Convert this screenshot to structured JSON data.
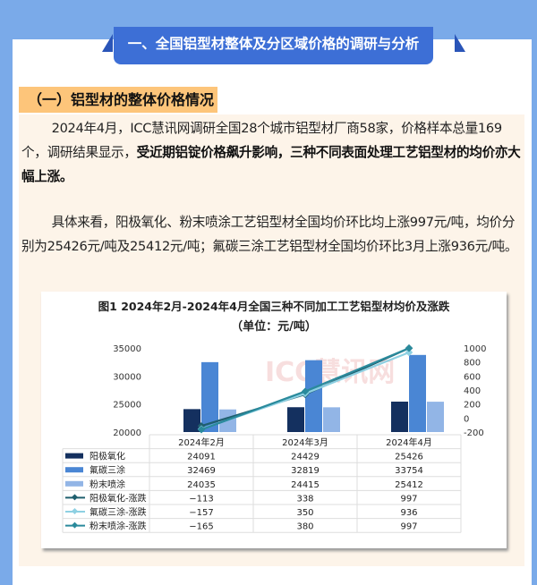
{
  "header": {
    "section_title": "一、全国铝型材整体及分区域价格的调研与分析",
    "subsection_title": "（一）铝型材的整体价格情况"
  },
  "paragraph1": {
    "normal": "2024年4月，ICC慧讯网调研全国28个城市铝型材厂商58家，价格样本总量169个，调研结果显示，",
    "bold": "受近期铝锭价格飙升影响，三种不同表面处理工艺铝型材的均价亦大幅上涨。"
  },
  "paragraph2": "具体来看，阳极氧化、粉末喷涂工艺铝型材全国均价环比均上涨997元/吨，均价分别为25426元/吨及25412元/吨；氟碳三涂工艺铝型材全国均价环比3月上涨936元/吨。",
  "watermark": "ICC慧讯网",
  "chart_data": {
    "type": "bar+line",
    "title": "图1 2024年2月-2024年4月全国三种不同加工工艺铝型材均价及涨跌",
    "subtitle": "（单位：元/吨）",
    "categories": [
      "2024年2月",
      "2024年3月",
      "2024年4月"
    ],
    "y_left": {
      "range": [
        20000,
        35000
      ],
      "ticks": [
        "35000",
        "30000",
        "25000",
        "20000"
      ]
    },
    "y_right": {
      "range": [
        -200,
        1000
      ],
      "ticks": [
        "1000",
        "800",
        "600",
        "400",
        "200",
        "0",
        "-200"
      ]
    },
    "bar_series": [
      {
        "name": "阳极氧化",
        "values": [
          24091,
          24429,
          25426
        ],
        "color": "#14305f"
      },
      {
        "name": "氟碳三涂",
        "values": [
          32469,
          32819,
          33754
        ],
        "color": "#4a86d4"
      },
      {
        "name": "粉末喷涂",
        "values": [
          24035,
          24415,
          25412
        ],
        "color": "#92b5e6"
      }
    ],
    "line_series": [
      {
        "name": "阳极氧化-涨跌",
        "values": [
          -113,
          338,
          997
        ],
        "color": "#1f5f6e"
      },
      {
        "name": "氟碳三涂-涨跌",
        "values": [
          -157,
          350,
          936
        ],
        "color": "#8ed0e2"
      },
      {
        "name": "粉末喷涂-涨跌",
        "values": [
          -165,
          380,
          997
        ],
        "color": "#2a8a9c"
      }
    ],
    "data_table": true
  }
}
